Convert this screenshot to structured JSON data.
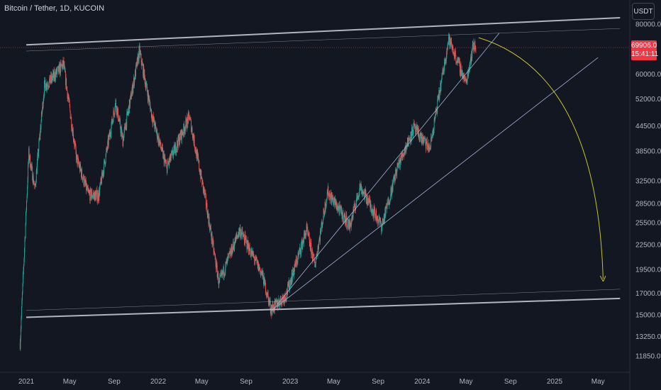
{
  "header": {
    "symbol_title": "Bitcoin / Tether, 1D, KUCOIN",
    "currency_button": "USDT"
  },
  "last_price": {
    "value": "69906.0",
    "countdown": "15:41:11",
    "color": "#f23645"
  },
  "colors": {
    "background": "#131722",
    "up_candle": "#26a69a",
    "down_candle": "#ef5350",
    "channel_line": "#b2b5be",
    "trend_line": "#9fb4d8",
    "projection_arrow": "#c9c12a"
  },
  "chart_data": {
    "type": "candlestick",
    "title": "",
    "xlabel": "",
    "ylabel": "",
    "ylim": [
      10500,
      89000
    ],
    "y_scale": "log",
    "grid": false,
    "x_tick_labels": [
      "2021",
      "May",
      "Sep",
      "2022",
      "May",
      "Sep",
      "2023",
      "May",
      "Sep",
      "2024",
      "May",
      "Sep",
      "2025",
      "May"
    ],
    "y_tick_labels": [
      "80000.0",
      "60000.0",
      "52000.0",
      "44500.0",
      "38500.0",
      "32500.0",
      "28500.0",
      "25500.0",
      "22500.0",
      "19500.0",
      "17000.0",
      "15000.0",
      "13250.0",
      "11850.0"
    ],
    "price_path": [
      {
        "date": "2020-12-15",
        "price": 12800
      },
      {
        "date": "2021-01-08",
        "price": 38000
      },
      {
        "date": "2021-01-25",
        "price": 31000
      },
      {
        "date": "2021-02-20",
        "price": 56000
      },
      {
        "date": "2021-03-10",
        "price": 58000
      },
      {
        "date": "2021-04-14",
        "price": 63500
      },
      {
        "date": "2021-05-20",
        "price": 37000
      },
      {
        "date": "2021-06-22",
        "price": 30000
      },
      {
        "date": "2021-07-20",
        "price": 29800
      },
      {
        "date": "2021-09-05",
        "price": 51000
      },
      {
        "date": "2021-09-25",
        "price": 41000
      },
      {
        "date": "2021-11-10",
        "price": 68500
      },
      {
        "date": "2021-12-15",
        "price": 47000
      },
      {
        "date": "2022-01-24",
        "price": 35000
      },
      {
        "date": "2022-03-28",
        "price": 47000
      },
      {
        "date": "2022-05-12",
        "price": 29000
      },
      {
        "date": "2022-06-18",
        "price": 18000
      },
      {
        "date": "2022-08-14",
        "price": 24500
      },
      {
        "date": "2022-10-15",
        "price": 19000
      },
      {
        "date": "2022-11-09",
        "price": 15500
      },
      {
        "date": "2022-12-20",
        "price": 16800
      },
      {
        "date": "2023-02-15",
        "price": 24500
      },
      {
        "date": "2023-03-10",
        "price": 20000
      },
      {
        "date": "2023-04-14",
        "price": 30500
      },
      {
        "date": "2023-06-15",
        "price": 25000
      },
      {
        "date": "2023-07-13",
        "price": 31500
      },
      {
        "date": "2023-09-11",
        "price": 25000
      },
      {
        "date": "2023-10-24",
        "price": 35000
      },
      {
        "date": "2023-12-08",
        "price": 44000
      },
      {
        "date": "2024-01-22",
        "price": 39000
      },
      {
        "date": "2024-03-14",
        "price": 73500
      },
      {
        "date": "2024-05-01",
        "price": 57000
      },
      {
        "date": "2024-05-21",
        "price": 71000
      },
      {
        "date": "2024-05-28",
        "price": 69906
      }
    ],
    "annotations": [
      {
        "type": "channel_line",
        "from": {
          "date": "2021-01-01",
          "price": 71000
        },
        "to": {
          "date": "2025-07-01",
          "price": 83000
        }
      },
      {
        "type": "channel_line",
        "from": {
          "date": "2021-01-01",
          "price": 14800
        },
        "to": {
          "date": "2025-07-01",
          "price": 16500
        }
      },
      {
        "type": "thin_line",
        "from": {
          "date": "2021-01-01",
          "price": 68500
        },
        "to": {
          "date": "2025-07-01",
          "price": 78000
        }
      },
      {
        "type": "thin_line",
        "from": {
          "date": "2021-01-01",
          "price": 15400
        },
        "to": {
          "date": "2025-07-01",
          "price": 17400
        }
      },
      {
        "type": "trend_line",
        "from": {
          "date": "2022-11-15",
          "price": 15500
        },
        "to": {
          "date": "2024-08-01",
          "price": 76000
        }
      },
      {
        "type": "trend_line",
        "from": {
          "date": "2022-11-15",
          "price": 15500
        },
        "to": {
          "date": "2025-05-01",
          "price": 66000
        }
      },
      {
        "type": "projection_arrow",
        "from": {
          "date": "2024-06-05",
          "price": 74000
        },
        "to": {
          "date": "2025-05-15",
          "price": 18500
        }
      }
    ]
  }
}
